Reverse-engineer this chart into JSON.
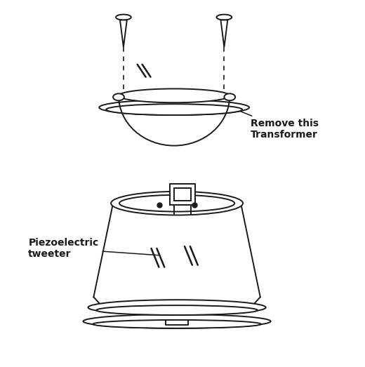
{
  "bg_color": "#ffffff",
  "line_color": "#1a1a1a",
  "label_transformer": "Remove this\nTransformer",
  "label_piezo": "Piezoelectric\ntweeter",
  "font_size_label": 10,
  "lw": 1.4
}
